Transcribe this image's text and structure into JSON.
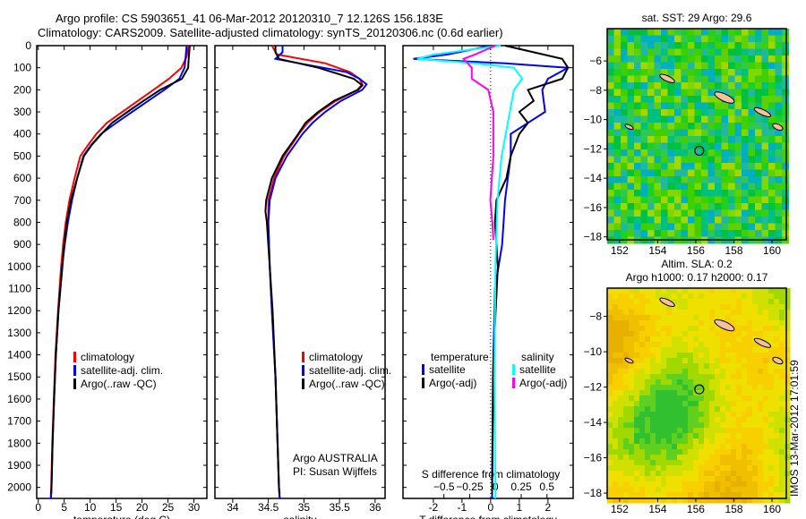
{
  "title_line1": "Argo profile: CS 5903651_41 06-Mar-2012 20120310_7 12.126S 156.183E",
  "title_line2": "Climatology: CARS2009. Satellite-adjusted climatology: synTS_20120306.nc (0.6d earlier)",
  "footer": "IMOS 13-Mar-2012 17:01:59",
  "chart_data": [
    {
      "type": "line",
      "name": "temperature",
      "xlabel": "temperature (deg C)",
      "xlim": [
        -0.3,
        32.5
      ],
      "ylim": [
        0,
        2050
      ],
      "xticks": [
        0,
        5,
        10,
        15,
        20,
        25,
        30
      ],
      "yticks": [
        0,
        100,
        200,
        300,
        400,
        500,
        600,
        700,
        800,
        900,
        1000,
        1100,
        1200,
        1300,
        1400,
        1500,
        1600,
        1700,
        1800,
        1900,
        2000
      ],
      "legend": [
        "climatology",
        "satellite-adj. clim.",
        "Argo(..raw -QC)"
      ],
      "series": [
        {
          "name": "climatology",
          "color": "#ff0000",
          "depth": [
            0,
            50,
            100,
            150,
            200,
            250,
            300,
            350,
            400,
            450,
            500,
            600,
            700,
            800,
            900,
            1000,
            1200,
            1400,
            1600,
            1800,
            2000,
            2050
          ],
          "values": [
            29,
            28.6,
            27.6,
            25.2,
            22.2,
            19.2,
            16.2,
            13.2,
            11.2,
            9.6,
            8.1,
            7.0,
            6.0,
            5.3,
            4.8,
            4.4,
            3.8,
            3.3,
            3.0,
            2.7,
            2.5,
            2.4
          ]
        },
        {
          "name": "satellite-adj. clim.",
          "color": "#0000ff",
          "depth": [
            0,
            50,
            100,
            150,
            200,
            250,
            300,
            350,
            400,
            450,
            500,
            600,
            700,
            800,
            900,
            1000,
            1200,
            1400,
            1600,
            1800,
            2000,
            2050
          ],
          "values": [
            28.6,
            28.4,
            28.2,
            27.2,
            24.3,
            21.2,
            18.1,
            15.0,
            12.1,
            10.2,
            8.7,
            7.5,
            6.5,
            5.7,
            5.1,
            4.6,
            3.9,
            3.4,
            3.05,
            2.75,
            2.55,
            2.45
          ]
        },
        {
          "name": "Argo(..raw -QC)",
          "color": "#000000",
          "depth": [
            0,
            30,
            60,
            100,
            150,
            200,
            250,
            300,
            350,
            400,
            450,
            500,
            600,
            700,
            800,
            900,
            1000,
            1200,
            1400,
            1600,
            1800,
            2000,
            2030
          ],
          "values": [
            29.2,
            29.1,
            29.0,
            28.9,
            27.7,
            23.5,
            20.3,
            17.2,
            14.2,
            12.2,
            10.3,
            8.8,
            7.5,
            6.3,
            5.5,
            5.0,
            4.65,
            3.9,
            3.4,
            3.05,
            2.75,
            2.55,
            2.5
          ]
        }
      ]
    },
    {
      "type": "line",
      "name": "salinity",
      "xlabel": "salinity",
      "xlim": [
        33.75,
        36.14
      ],
      "ylim": [
        0,
        2050
      ],
      "xticks": [
        34,
        34.5,
        35,
        35.5,
        36
      ],
      "legend": [
        "climatology",
        "satellite-adj. clim.",
        "Argo(..raw -QC)"
      ],
      "annotation": [
        "Argo AUSTRALIA",
        "PI: Susan Wijffels"
      ],
      "series": [
        {
          "name": "climatology",
          "color": "#ff0000",
          "depth": [
            0,
            40,
            80,
            120,
            150,
            175,
            200,
            250,
            300,
            350,
            400,
            500,
            600,
            700,
            800,
            1000,
            1200,
            1500,
            2000,
            2050
          ],
          "values": [
            34.55,
            34.62,
            35.3,
            35.65,
            35.78,
            35.82,
            35.75,
            35.45,
            35.22,
            35.05,
            34.93,
            34.72,
            34.58,
            34.5,
            34.5,
            34.52,
            34.55,
            34.6,
            34.65,
            34.66
          ]
        },
        {
          "name": "satellite-adj. clim.",
          "color": "#0000ff",
          "depth": [
            0,
            30,
            60,
            90,
            120,
            150,
            175,
            200,
            250,
            300,
            350,
            400,
            500,
            600,
            700,
            800,
            1000,
            1200,
            1500,
            2000,
            2050
          ],
          "values": [
            34.7,
            34.7,
            34.6,
            35.1,
            35.6,
            35.78,
            35.88,
            35.82,
            35.52,
            35.3,
            35.12,
            34.98,
            34.76,
            34.6,
            34.52,
            34.5,
            34.52,
            34.55,
            34.6,
            34.65,
            34.66
          ]
        },
        {
          "name": "Argo(..raw -QC)",
          "color": "#000000",
          "depth": [
            0,
            30,
            60,
            100,
            150,
            180,
            200,
            250,
            300,
            350,
            400,
            500,
            600,
            700,
            750,
            800,
            1000,
            1200,
            1500,
            2000,
            2030
          ],
          "values": [
            34.6,
            34.6,
            34.65,
            35.2,
            35.7,
            35.82,
            35.76,
            35.42,
            35.2,
            35.02,
            34.92,
            34.7,
            34.55,
            34.47,
            34.46,
            34.48,
            34.52,
            34.56,
            34.6,
            34.65,
            34.66
          ]
        }
      ]
    },
    {
      "type": "line",
      "name": "difference",
      "xlabel": "T difference from climatology",
      "x2label": "S difference from climatology",
      "xlim": [
        -3.06,
        2.88
      ],
      "x2lim": [
        -0.897,
        0.754
      ],
      "ylim": [
        0,
        2050
      ],
      "xticks": [
        -2,
        -1,
        0,
        1,
        2
      ],
      "x2ticks": [
        -0.5,
        -0.25,
        0,
        0.25,
        0.5
      ],
      "legend_headers": [
        "temperature",
        "salinity"
      ],
      "legend": [
        "satellite",
        "Argo(-adj)",
        "satellite",
        "Argo(-adj)"
      ],
      "series": [
        {
          "name": "T satellite",
          "axis": "T",
          "color": "#0000ff",
          "depth": [
            0,
            40,
            60,
            80,
            100,
            150,
            200,
            300,
            400,
            500,
            600,
            700,
            900,
            1100,
            1500,
            2000,
            2050
          ],
          "values": [
            0,
            -1.5,
            -2.7,
            0.5,
            2.7,
            2.0,
            1.8,
            1.9,
            0.7,
            0.7,
            0.6,
            0.5,
            0.4,
            0.15,
            0.08,
            0.05,
            0.05
          ]
        },
        {
          "name": "T Argo(-adj)",
          "axis": "T",
          "color": "#000000",
          "depth": [
            0,
            30,
            60,
            100,
            150,
            200,
            250,
            300,
            350,
            400,
            500,
            600,
            700,
            800,
            1000,
            1400,
            2000,
            2030
          ],
          "values": [
            0.5,
            1.5,
            2.5,
            2.7,
            2.5,
            1.3,
            1.5,
            1.0,
            1.3,
            1.0,
            0.7,
            0.55,
            0.2,
            0.15,
            0.25,
            0.1,
            0.05,
            0.05
          ]
        },
        {
          "name": "S satellite",
          "axis": "S",
          "color": "#00ffff",
          "depth": [
            0,
            40,
            60,
            80,
            100,
            150,
            200,
            300,
            400,
            500,
            700,
            1000,
            1500,
            2000,
            2050
          ],
          "values": [
            0.05,
            -0.6,
            -0.76,
            -0.2,
            0.18,
            0.26,
            0.18,
            0.14,
            0.1,
            0.06,
            0.02,
            0.0,
            -0.01,
            0.0,
            0.0
          ]
        },
        {
          "name": "S Argo(-adj)",
          "axis": "S",
          "color": "#ff00ff",
          "depth": [
            0,
            40,
            60,
            100,
            150,
            200,
            300,
            500,
            700,
            800,
            880
          ],
          "values": [
            0.0,
            -0.2,
            -0.31,
            -0.23,
            -0.23,
            -0.07,
            -0.02,
            -0.02,
            -0.05,
            -0.03,
            -0.02
          ]
        }
      ]
    },
    {
      "type": "heatmap",
      "name": "sst-map",
      "title": "sat. SST: 29 Argo: 29.6",
      "xlim": [
        151.35,
        160.75
      ],
      "ylim": [
        -18.2,
        -3.8
      ],
      "xticks": [
        152,
        154,
        156,
        158,
        160
      ],
      "yticks": [
        -6,
        -8,
        -10,
        -12,
        -14,
        -16,
        -18
      ],
      "argo_position": [
        156.183,
        -12.126
      ]
    },
    {
      "type": "heatmap",
      "name": "sla-map",
      "title_lines": [
        "Altim. SLA: 0.2",
        "Argo h1000: 0.17 h2000: 0.17"
      ],
      "xlim": [
        151.35,
        160.75
      ],
      "ylim": [
        -18.3,
        -6.4
      ],
      "xticks": [
        152,
        154,
        156,
        158,
        160
      ],
      "yticks": [
        -8,
        -10,
        -12,
        -14,
        -16,
        -18
      ],
      "argo_position": [
        156.183,
        -12.126
      ]
    }
  ]
}
